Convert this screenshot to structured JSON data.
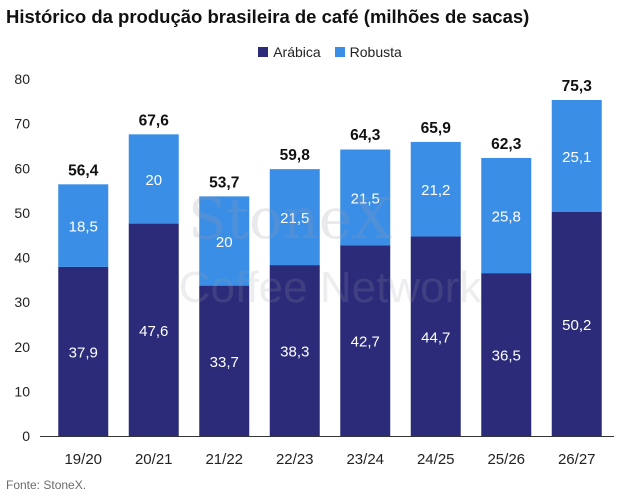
{
  "title": "Histórico da produção brasileira de café (milhões de sacas)",
  "source": "Fonte: StoneX.",
  "watermark": {
    "line1": "StoneX",
    "line2": "Coffee Network"
  },
  "colors": {
    "arabica": "#2b2b7a",
    "robusta": "#3b8ee6",
    "axis": "#333333",
    "total_label": "#111111"
  },
  "chart_data": {
    "type": "bar",
    "stacked": true,
    "categories": [
      "19/20",
      "20/21",
      "21/22",
      "22/23",
      "23/24",
      "24/25",
      "25/26",
      "26/27"
    ],
    "series": [
      {
        "name": "Arábica",
        "values": [
          37.9,
          47.6,
          33.7,
          38.3,
          42.7,
          44.7,
          36.5,
          50.2
        ]
      },
      {
        "name": "Robusta",
        "values": [
          18.5,
          20,
          20,
          21.5,
          21.5,
          21.2,
          25.8,
          25.1
        ]
      }
    ],
    "totals": [
      56.4,
      67.6,
      53.7,
      59.8,
      64.3,
      65.9,
      62.3,
      75.3
    ],
    "ylim": [
      0,
      80
    ],
    "yticks": [
      0,
      10,
      20,
      30,
      40,
      50,
      60,
      70,
      80
    ],
    "grid": false,
    "legend_position": "top-center"
  }
}
